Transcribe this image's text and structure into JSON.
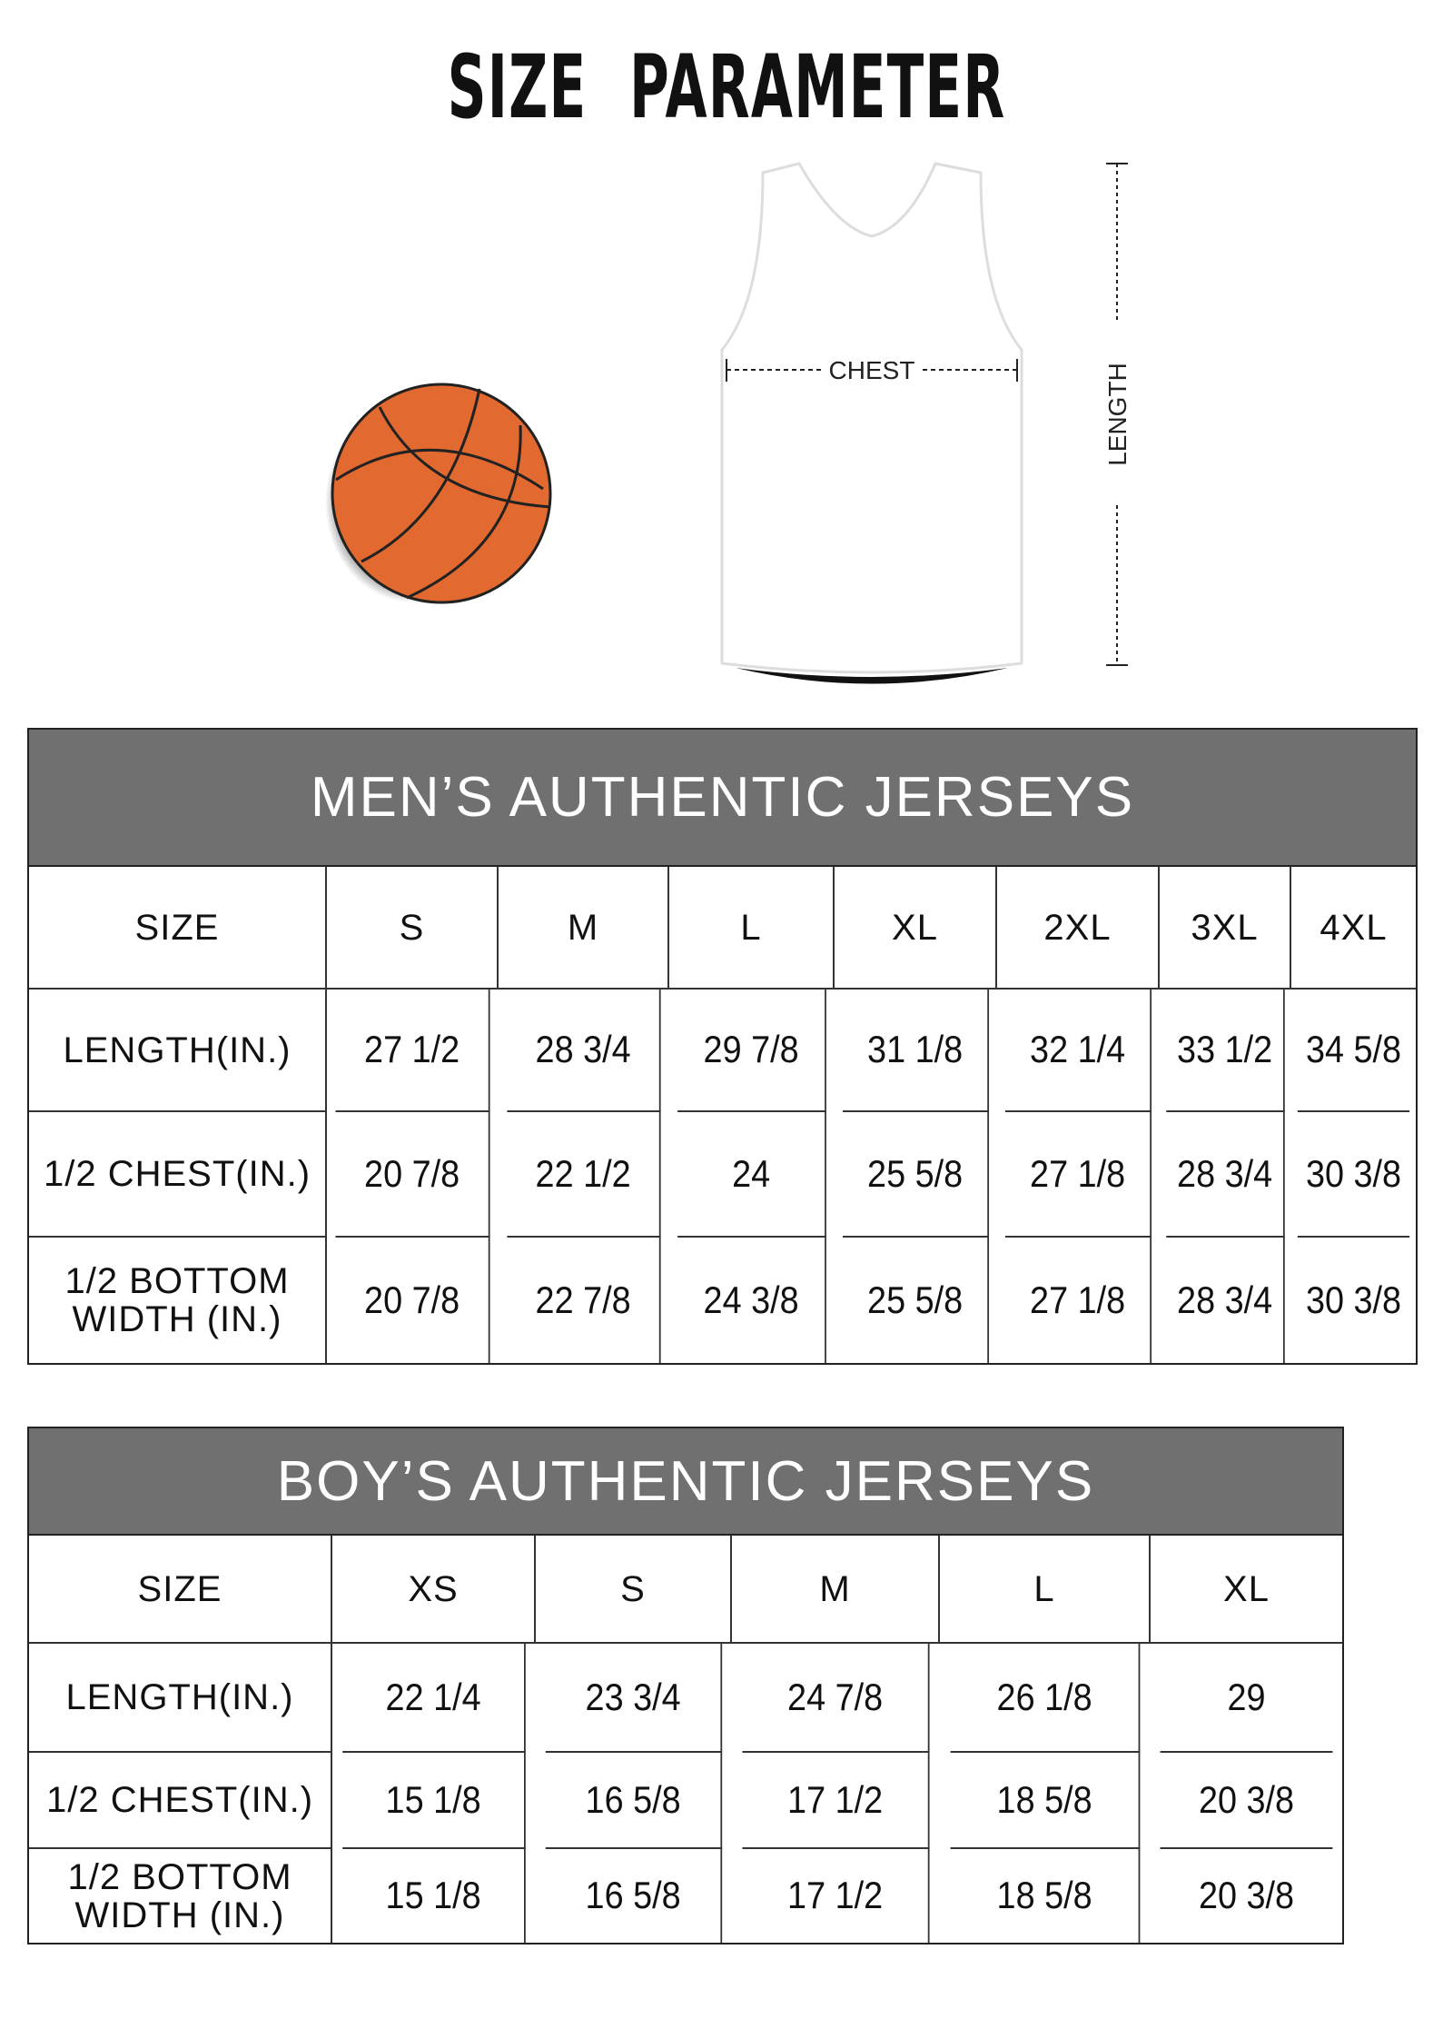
{
  "page_title": "SIZE   PARAMETER",
  "illustration": {
    "chest_label": "CHEST",
    "length_label": "LENGTH",
    "ball_color": "#E2692F",
    "header_color": "#707070"
  },
  "mens_table": {
    "title": "MEN’S AUTHENTIC JERSEYS",
    "columns": [
      "SIZE",
      "S",
      "M",
      "L",
      "XL",
      "2XL",
      "3XL",
      "4XL"
    ],
    "rows": [
      [
        "LENGTH(IN.)",
        "27  1/2",
        "28  3/4",
        "29  7/8",
        "31  1/8",
        "32  1/4",
        "33  1/2",
        "34  5/8"
      ],
      [
        "1/2 CHEST(IN.)",
        "20  7/8",
        "22  1/2",
        "24",
        "25  5/8",
        "27  1/8",
        "28  3/4",
        "30  3/8"
      ],
      [
        "1/2 BOTTOM\nWIDTH  (IN.)",
        "20  7/8",
        "22  7/8",
        "24  3/8",
        "25  5/8",
        "27  1/8",
        "28  3/4",
        "30  3/8"
      ]
    ]
  },
  "boys_table": {
    "title": "BOY’S AUTHENTIC JERSEYS",
    "columns": [
      "SIZE",
      "XS",
      "S",
      "M",
      "L",
      "XL"
    ],
    "rows": [
      [
        "LENGTH(IN.)",
        "22  1/4",
        "23  3/4",
        "24  7/8",
        "26  1/8",
        "29"
      ],
      [
        "1/2 CHEST(IN.)",
        "15  1/8",
        "16  5/8",
        "17  1/2",
        "18  5/8",
        "20  3/8"
      ],
      [
        "1/2 BOTTOM\nWIDTH  (IN.)",
        "15  1/8",
        "16  5/8",
        "17  1/2",
        "18  5/8",
        "20  3/8"
      ]
    ]
  }
}
